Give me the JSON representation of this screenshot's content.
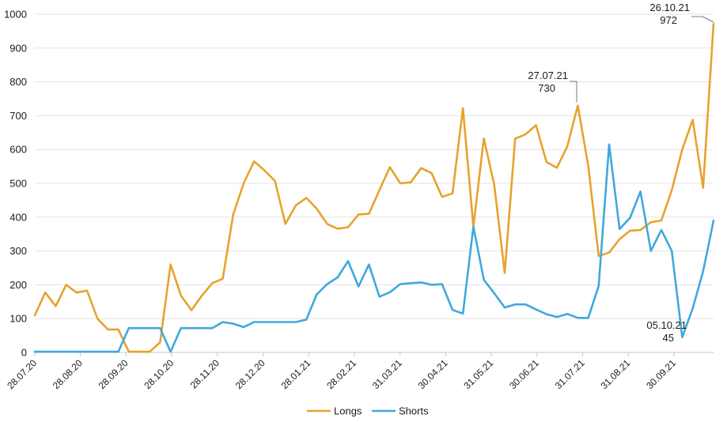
{
  "chart_data": {
    "type": "line",
    "title": "",
    "xlabel": "",
    "ylabel": "",
    "ylim": [
      0,
      1000
    ],
    "y_ticks": [
      0,
      100,
      200,
      300,
      400,
      500,
      600,
      700,
      800,
      900,
      1000
    ],
    "x_tick_labels": [
      "28.07.20",
      "28.08.20",
      "28.09.20",
      "28.10.20",
      "28.11.20",
      "28.12.20",
      "28.01.21",
      "28.02.21",
      "31.03.21",
      "30.04.21",
      "31.05.21",
      "30.06.21",
      "31.07.21",
      "31.08.21",
      "30.09.21"
    ],
    "legend_position": "bottom",
    "series": [
      {
        "name": "Longs",
        "color": "#e8a22d",
        "values": [
          110,
          177,
          137,
          200,
          177,
          183,
          100,
          68,
          68,
          2,
          2,
          2,
          30,
          260,
          168,
          125,
          168,
          205,
          218,
          408,
          500,
          565,
          538,
          507,
          380,
          435,
          457,
          425,
          380,
          366,
          370,
          408,
          410,
          480,
          548,
          500,
          503,
          545,
          530,
          460,
          470,
          722,
          372,
          633,
          495,
          235,
          632,
          645,
          672,
          563,
          546,
          610,
          730,
          552,
          285,
          295,
          335,
          360,
          362,
          385,
          390,
          480,
          600,
          688,
          487,
          972
        ]
      },
      {
        "name": "Shorts",
        "color": "#3fa9dc",
        "values": [
          2,
          2,
          2,
          2,
          2,
          2,
          2,
          2,
          2,
          72,
          72,
          72,
          72,
          2,
          72,
          72,
          72,
          72,
          90,
          85,
          75,
          90,
          90,
          90,
          90,
          90,
          97,
          172,
          202,
          222,
          270,
          195,
          260,
          165,
          178,
          202,
          205,
          207,
          200,
          202,
          126,
          115,
          372,
          215,
          175,
          133,
          142,
          142,
          127,
          113,
          105,
          114,
          102,
          102,
          197,
          615,
          365,
          398,
          476,
          300,
          362,
          300,
          45,
          130,
          240,
          390
        ]
      }
    ],
    "annotations": [
      {
        "date": "26.10.21",
        "value": "972"
      },
      {
        "date": "27.07.21",
        "value": "730"
      },
      {
        "date": "05.10.21",
        "value": "45"
      }
    ]
  }
}
